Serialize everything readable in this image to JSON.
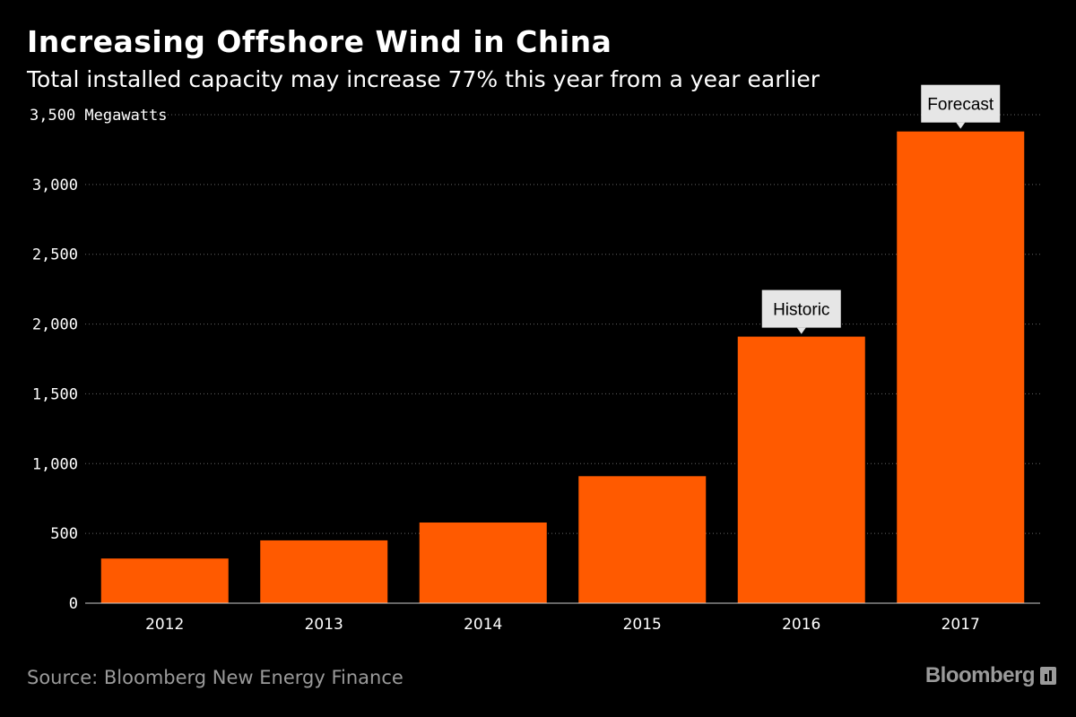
{
  "header": {
    "title": "Increasing Offshore Wind in China",
    "subtitle": "Total installed capacity may increase 77% this year from a year earlier"
  },
  "footer": {
    "source": "Source: Bloomberg New Energy Finance",
    "logo_text": "Bloomberg"
  },
  "colors": {
    "bar": "#ff5a00",
    "background": "#000000",
    "grid": "#666666",
    "callout_bg": "#e6e6e6"
  },
  "chart_data": {
    "type": "bar",
    "title": "Increasing Offshore Wind in China",
    "subtitle": "Total installed capacity may increase 77% this year from a year earlier",
    "categories": [
      "2012",
      "2013",
      "2014",
      "2015",
      "2016",
      "2017"
    ],
    "values": [
      320,
      450,
      578,
      910,
      1910,
      3380
    ],
    "ylabel": "Megawatts",
    "ylim": [
      0,
      3500
    ],
    "yticks": [
      0,
      500,
      1000,
      1500,
      2000,
      2500,
      3000,
      3500
    ],
    "ytick_labels": [
      "0",
      "500",
      "1,000",
      "1,500",
      "2,000",
      "2,500",
      "3,000",
      "3,500 Megawatts"
    ],
    "grid": true,
    "annotations": [
      {
        "category": "2016",
        "text": "Historic"
      },
      {
        "category": "2017",
        "text": "Forecast"
      }
    ]
  }
}
